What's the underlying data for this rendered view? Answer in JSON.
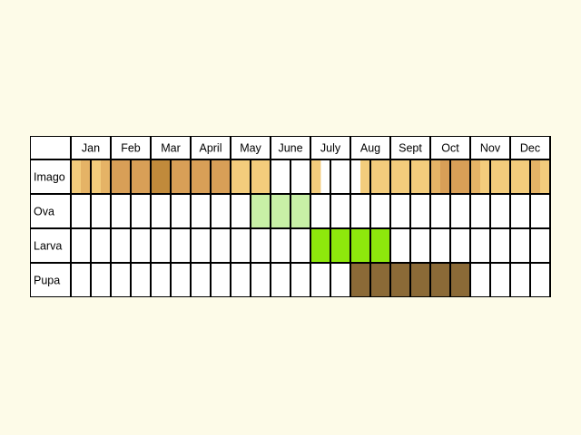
{
  "months": [
    "Jan",
    "Feb",
    "Mar",
    "Apr",
    "May",
    "Jun",
    "Jul",
    "Aug",
    "Sep",
    "Oct",
    "Nov",
    "Dec"
  ],
  "month_labels": [
    "Jan",
    "Feb",
    "Mar",
    "April",
    "May",
    "June",
    "July",
    "Aug",
    "Sept",
    "Oct",
    "Nov",
    "Dec"
  ],
  "stages": [
    {
      "label": "Imago",
      "slots": [
        "#f3cc7c",
        "#e5b366",
        "#f3cc7c",
        "#e5b366",
        "#d89f57",
        "#d89f57",
        "#d89f57",
        "#d89f57",
        "#c18a3b",
        "#c18a3b",
        "#d89f57",
        "#d89f57",
        "#d89f57",
        "#d89f57",
        "#d89f57",
        "#d89f57",
        "#f3cc7c",
        "#f3cc7c",
        "#f3cc7c",
        "#f3cc7c",
        null,
        null,
        null,
        null,
        "#f3cc7c",
        null,
        null,
        null,
        null,
        "#f3cc7c",
        "#f3cc7c",
        "#f3cc7c",
        "#f3cc7c",
        "#f3cc7c",
        "#f3cc7c",
        "#f3cc7c",
        "#e5b366",
        "#d89f57",
        "#d89f57",
        "#d89f57",
        "#e5b366",
        "#f3cc7c",
        "#f3cc7c",
        "#f3cc7c",
        "#f3cc7c",
        "#f3cc7c",
        "#e5b366",
        "#f3cc7c"
      ]
    },
    {
      "label": "Ova",
      "slots": [
        null,
        null,
        null,
        null,
        null,
        null,
        null,
        null,
        null,
        null,
        null,
        null,
        null,
        null,
        null,
        null,
        null,
        null,
        "#c8f0a6",
        "#c8f0a6",
        "#c8f0a6",
        "#c8f0a6",
        "#c8f0a6",
        "#c8f0a6",
        null,
        null,
        null,
        null,
        null,
        null,
        null,
        null,
        null,
        null,
        null,
        null,
        null,
        null,
        null,
        null,
        null,
        null,
        null,
        null,
        null,
        null,
        null,
        null
      ]
    },
    {
      "label": "Larva",
      "slots": [
        null,
        null,
        null,
        null,
        null,
        null,
        null,
        null,
        null,
        null,
        null,
        null,
        null,
        null,
        null,
        null,
        null,
        null,
        null,
        null,
        null,
        null,
        null,
        null,
        "#8ee80c",
        "#8ee80c",
        "#8ee80c",
        "#8ee80c",
        "#8ee80c",
        "#8ee80c",
        "#8ee80c",
        "#8ee80c",
        null,
        null,
        null,
        null,
        null,
        null,
        null,
        null,
        null,
        null,
        null,
        null,
        null,
        null,
        null,
        null
      ]
    },
    {
      "label": "Pupa",
      "slots": [
        null,
        null,
        null,
        null,
        null,
        null,
        null,
        null,
        null,
        null,
        null,
        null,
        null,
        null,
        null,
        null,
        null,
        null,
        null,
        null,
        null,
        null,
        null,
        null,
        null,
        null,
        null,
        null,
        "#8b6a37",
        "#8b6a37",
        "#8b6a37",
        "#8b6a37",
        "#8b6a37",
        "#8b6a37",
        "#8b6a37",
        "#8b6a37",
        "#8b6a37",
        "#8b6a37",
        "#8b6a37",
        "#8b6a37",
        null,
        null,
        null,
        null,
        null,
        null,
        null,
        null
      ]
    }
  ],
  "colors": {
    "background": "#fdfbe8",
    "cell": "#ffffff",
    "grid": "#000000"
  }
}
